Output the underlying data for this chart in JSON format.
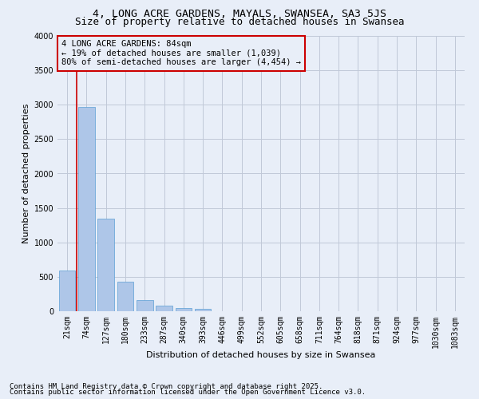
{
  "title1": "4, LONG ACRE GARDENS, MAYALS, SWANSEA, SA3 5JS",
  "title2": "Size of property relative to detached houses in Swansea",
  "xlabel": "Distribution of detached houses by size in Swansea",
  "ylabel": "Number of detached properties",
  "categories": [
    "21sqm",
    "74sqm",
    "127sqm",
    "180sqm",
    "233sqm",
    "287sqm",
    "340sqm",
    "393sqm",
    "446sqm",
    "499sqm",
    "552sqm",
    "605sqm",
    "658sqm",
    "711sqm",
    "764sqm",
    "818sqm",
    "871sqm",
    "924sqm",
    "977sqm",
    "1030sqm",
    "1083sqm"
  ],
  "values": [
    590,
    2970,
    1340,
    430,
    165,
    80,
    45,
    38,
    0,
    0,
    0,
    0,
    0,
    0,
    0,
    0,
    0,
    0,
    0,
    0,
    0
  ],
  "bar_color": "#aec6e8",
  "bar_edge_color": "#5a9fd4",
  "grid_color": "#c0c8d8",
  "background_color": "#e8eef8",
  "vline_x": 0.5,
  "vline_color": "#cc0000",
  "annotation_title": "4 LONG ACRE GARDENS: 84sqm",
  "annotation_line1": "← 19% of detached houses are smaller (1,039)",
  "annotation_line2": "80% of semi-detached houses are larger (4,454) →",
  "annotation_box_color": "#cc0000",
  "ylim": [
    0,
    4000
  ],
  "yticks": [
    0,
    500,
    1000,
    1500,
    2000,
    2500,
    3000,
    3500,
    4000
  ],
  "footer1": "Contains HM Land Registry data © Crown copyright and database right 2025.",
  "footer2": "Contains public sector information licensed under the Open Government Licence v3.0.",
  "title1_fontsize": 9.5,
  "title2_fontsize": 9,
  "axis_fontsize": 8,
  "tick_fontsize": 7,
  "annotation_fontsize": 7.5,
  "footer_fontsize": 6.5
}
